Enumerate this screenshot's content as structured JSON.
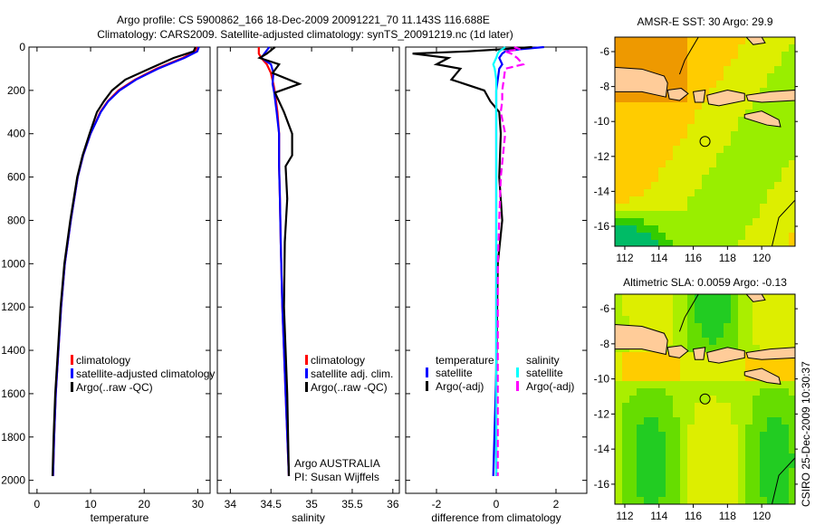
{
  "title": {
    "line1": "Argo profile: CS 5900862_166 18-Dec-2009 20091221_70 11.143S 116.688E",
    "line2": "Climatology: CARS2009. Satellite-adjusted climatology: synTS_20091219.nc (1d later)"
  },
  "side_stamp": "CSIRO 25-Dec-2009 10:30:37",
  "colors": {
    "climatology": "#ff0000",
    "satellite": "#0000ff",
    "argo": "#000000",
    "sal_satellite": "#00ffff",
    "sal_argo": "#ff00ff",
    "land": "#ffcc99"
  },
  "chart_data": [
    {
      "type": "line",
      "xlabel": "temperature",
      "ylabel": "",
      "xlim": [
        -1.5,
        32.3
      ],
      "ylim": [
        0,
        2060
      ],
      "xticks": [
        "0",
        "10",
        "20",
        "30"
      ],
      "xtickvals": [
        0,
        10,
        20,
        30
      ],
      "yticks": [
        "0",
        "200",
        "400",
        "600",
        "800",
        "1000",
        "1200",
        "1400",
        "1600",
        "1800",
        "2000"
      ],
      "ytickvals": [
        0,
        200,
        400,
        600,
        800,
        1000,
        1200,
        1400,
        1600,
        1800,
        2000
      ],
      "depth": [
        0,
        20,
        50,
        100,
        150,
        200,
        250,
        300,
        400,
        500,
        600,
        800,
        1000,
        1200,
        1400,
        1600,
        1800,
        1980
      ],
      "series": [
        {
          "name": "climatology",
          "color": "#ff0000",
          "values": [
            29.8,
            29.5,
            27.2,
            22.3,
            18.3,
            15.2,
            13.2,
            11.8,
            10,
            8.6,
            7.6,
            6.3,
            5.2,
            4.5,
            4,
            3.5,
            3.2,
            3
          ]
        },
        {
          "name": "satellite-adjusted climatology",
          "color": "#0000ff",
          "values": [
            30.2,
            29.9,
            27.5,
            22.6,
            18.5,
            15.4,
            13.3,
            11.9,
            10,
            8.6,
            7.6,
            6.3,
            5.2,
            4.5,
            4,
            3.5,
            3.2,
            3
          ]
        },
        {
          "name": "Argo(..raw -QC)",
          "color": "#000000",
          "values": [
            29.6,
            29.2,
            25.5,
            21,
            16.5,
            14,
            12.5,
            11.2,
            9.8,
            8.5,
            7.5,
            6.2,
            5.1,
            4.4,
            3.9,
            3.4,
            3.1,
            2.9
          ]
        }
      ],
      "legend": [
        "climatology",
        "satellite-adjusted climatology",
        "Argo(..raw -QC)"
      ]
    },
    {
      "type": "line",
      "xlabel": "salinity",
      "xlim": [
        33.84,
        36.08
      ],
      "ylim": [
        0,
        2060
      ],
      "xticks": [
        "34",
        "34.5",
        "35",
        "35.5",
        "36"
      ],
      "xtickvals": [
        34,
        34.5,
        35,
        35.5,
        36
      ],
      "depth": [
        0,
        30,
        50,
        80,
        120,
        170,
        210,
        300,
        400,
        500,
        550,
        700,
        900,
        1200,
        1600,
        1980
      ],
      "series": [
        {
          "name": "climatology",
          "color": "#ff0000",
          "values": [
            34.35,
            34.35,
            34.38,
            34.45,
            34.5,
            34.53,
            34.55,
            34.58,
            34.6,
            34.6,
            34.6,
            34.61,
            34.62,
            34.64,
            34.68,
            34.72
          ]
        },
        {
          "name": "satellite adj. clim.",
          "color": "#0000ff",
          "values": [
            34.48,
            34.42,
            34.38,
            34.5,
            34.53,
            34.52,
            34.54,
            34.57,
            34.6,
            34.6,
            34.6,
            34.61,
            34.62,
            34.64,
            34.68,
            34.72
          ]
        },
        {
          "name": "Argo(..raw -QC)",
          "color": "#000000",
          "values": [
            34.55,
            34.45,
            34.36,
            34.6,
            34.52,
            34.85,
            34.55,
            34.66,
            34.76,
            34.76,
            34.68,
            34.7,
            34.67,
            34.66,
            34.7,
            34.72
          ]
        }
      ],
      "legend": [
        "climatology",
        "satellite adj. clim.",
        "Argo(..raw -QC)"
      ],
      "annotations": [
        "Argo AUSTRALIA",
        "PI: Susan Wijffels"
      ]
    },
    {
      "type": "line",
      "xlabel": "difference from climatology",
      "xlim": [
        -3.03,
        3.03
      ],
      "ylim": [
        0,
        2060
      ],
      "xticks": [
        "-2",
        "0",
        "2"
      ],
      "xtickvals": [
        -2,
        0,
        2
      ],
      "depth": [
        0,
        10,
        20,
        30,
        50,
        80,
        100,
        150,
        200,
        250,
        300,
        400,
        600,
        800,
        1000,
        1500,
        1980
      ],
      "series": [
        {
          "name": "temperature satellite",
          "color": "#0000ff",
          "values": [
            1.6,
            0.8,
            0.3,
            0.2,
            0.1,
            0.2,
            0.1,
            0.05,
            0,
            0,
            0,
            0,
            0,
            0,
            0,
            0,
            -0.1
          ]
        },
        {
          "name": "temperature Argo(-adj)",
          "color": "#000000",
          "values": [
            1.2,
            0.2,
            -1,
            -2.8,
            -1.6,
            -2,
            -1.2,
            -1.5,
            -0.4,
            -0.2,
            0.1,
            0.15,
            0.1,
            0.2,
            0.05,
            0,
            0
          ]
        },
        {
          "name": "salinity satellite",
          "color": "#00ffff",
          "values": [
            0.3,
            0.2,
            0.1,
            0.05,
            0,
            -0.1,
            -0.05,
            0,
            0,
            0,
            0,
            0,
            0,
            0,
            0,
            0,
            0
          ]
        },
        {
          "name": "salinity Argo(-adj)",
          "color": "#ff00ff",
          "values": [
            0.6,
            0.8,
            0.3,
            0.5,
            0.7,
            0.9,
            0.3,
            0.25,
            0.2,
            0.2,
            0.15,
            0.3,
            0.15,
            0.1,
            0.05,
            0.05,
            0.05
          ]
        }
      ],
      "legend_temperature": {
        "heading": "temperature",
        "items": [
          "satellite",
          "Argo(-adj)"
        ]
      },
      "legend_salinity": {
        "heading": "salinity",
        "items": [
          "satellite",
          "Argo(-adj)"
        ]
      }
    },
    {
      "type": "heatmap",
      "title": "AMSR-E SST: 30 Argo: 29.9",
      "xlim": [
        111.42,
        121.95
      ],
      "ylim": [
        -17.14,
        -5.17
      ],
      "xticks": [
        "112",
        "114",
        "116",
        "118",
        "120"
      ],
      "xtickvals": [
        112,
        114,
        116,
        118,
        120
      ],
      "yticks": [
        "-6",
        "-8",
        "-10",
        "-12",
        "-14",
        "-16"
      ],
      "ytickvals": [
        -6,
        -8,
        -10,
        -12,
        -14,
        -16
      ],
      "marker": {
        "lon": 116.688,
        "lat": -11.143
      }
    },
    {
      "type": "heatmap",
      "title": "Altimetric SLA: 0.0059 Argo: -0.13",
      "xlim": [
        111.42,
        121.95
      ],
      "ylim": [
        -17.14,
        -5.17
      ],
      "xticks": [
        "112",
        "114",
        "116",
        "118",
        "120"
      ],
      "xtickvals": [
        112,
        114,
        116,
        118,
        120
      ],
      "yticks": [
        "-6",
        "-8",
        "-10",
        "-12",
        "-14",
        "-16"
      ],
      "ytickvals": [
        -6,
        -8,
        -10,
        -12,
        -14,
        -16
      ],
      "marker": {
        "lon": 116.688,
        "lat": -11.143
      }
    }
  ]
}
